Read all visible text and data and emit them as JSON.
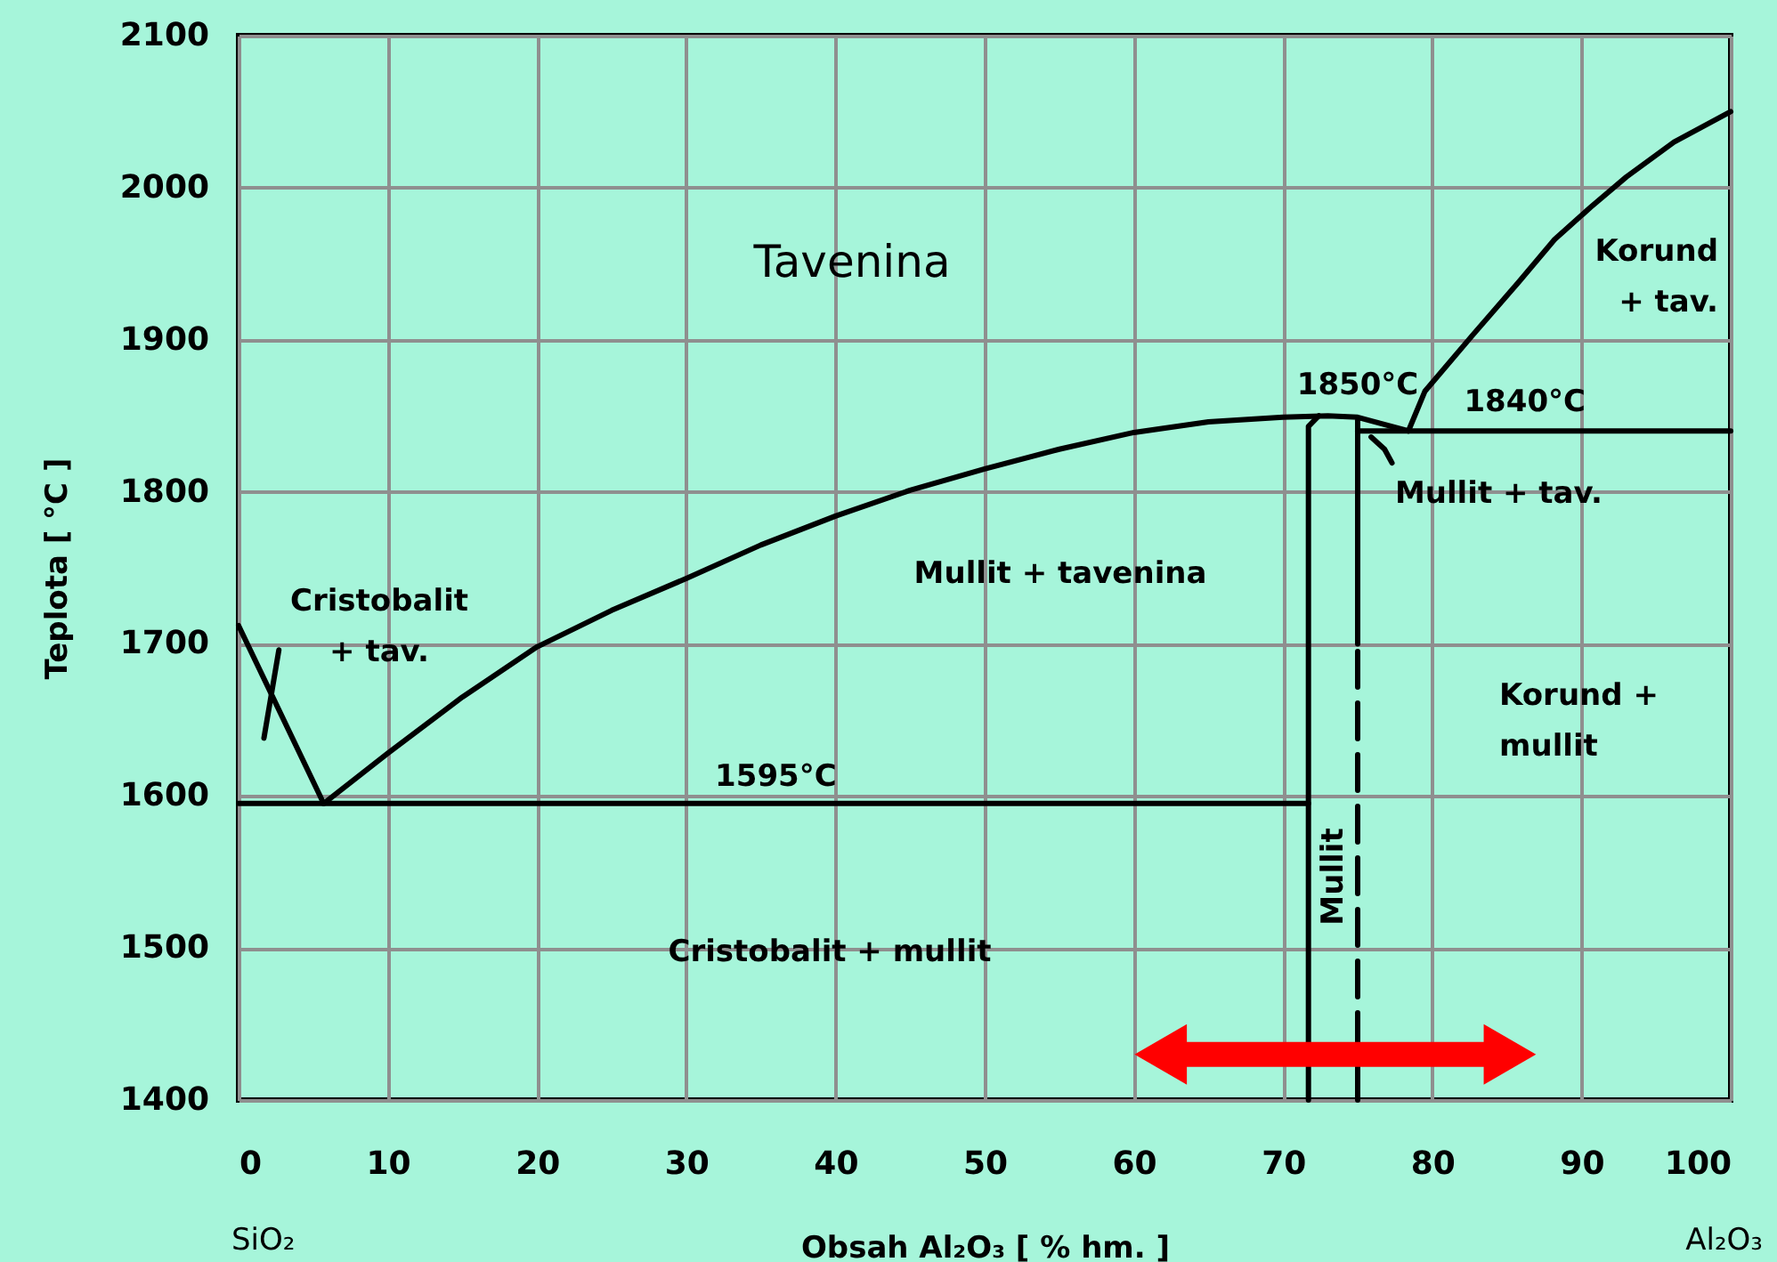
{
  "chart_data": {
    "type": "line",
    "xlabel": "Obsah Al₂O₃ [ % hm. ]",
    "ylabel": "Teplota [ °C ]",
    "xlim": [
      0,
      100
    ],
    "xticks": [
      0,
      10,
      20,
      30,
      40,
      50,
      60,
      70,
      80,
      90,
      100
    ],
    "ylim": [
      1400,
      2100
    ],
    "yticks": [
      1400,
      1500,
      1600,
      1700,
      1800,
      1900,
      2000,
      2100
    ],
    "grid": true,
    "series": [
      {
        "color": "#000000",
        "x": [
          0,
          5.7
        ],
        "values": [
          1712,
          1595
        ]
      },
      {
        "color": "#000000",
        "x": [
          5.7,
          10,
          15,
          20,
          25,
          30,
          35,
          40,
          45,
          50,
          55,
          60,
          65,
          70,
          73,
          75,
          76.5,
          78.4
        ],
        "values": [
          1595,
          1628,
          1665,
          1698,
          1722,
          1743,
          1765,
          1784,
          1801,
          1815,
          1828,
          1839,
          1846,
          1849,
          1850,
          1849,
          1845,
          1840
        ]
      },
      {
        "color": "#000000",
        "x": [
          0,
          71.7
        ],
        "values": [
          1595,
          1595
        ]
      },
      {
        "color": "#000000",
        "x": [
          71.7,
          71.7,
          72.4
        ],
        "values": [
          1400,
          1843,
          1850
        ]
      },
      {
        "color": "#000000",
        "x": [
          75,
          75
        ],
        "values": [
          1700,
          1847
        ]
      },
      {
        "color": "#000000",
        "x": [
          75,
          75
        ],
        "values": [
          1400,
          1700
        ],
        "line_style": "dashed"
      },
      {
        "color": "#000000",
        "x": [
          75,
          100
        ],
        "values": [
          1840,
          1840
        ]
      },
      {
        "color": "#000000",
        "x": [
          78.4,
          79.5,
          82.7,
          85.8,
          88.2,
          90.6,
          93,
          96.2,
          100
        ],
        "values": [
          1840,
          1866,
          1903,
          1938,
          1966,
          1987,
          2007,
          2030,
          2050
        ]
      },
      {
        "color": "#000000",
        "x": [
          75.9,
          76.8,
          77.3
        ],
        "values": [
          1836,
          1828,
          1819
        ]
      },
      {
        "color": "#000000",
        "x": [
          2.7,
          1.7
        ],
        "values": [
          1696,
          1638
        ]
      },
      {
        "color": "#ff0000",
        "x": [
          61.8,
          85.2
        ],
        "values": [
          1430,
          1430
        ],
        "marker": "triangle"
      }
    ],
    "annotations": [
      "Tavenina",
      "Cristobalit\n+ tav.",
      "Mullit + tavenina",
      "Korund\n+ tav.",
      {
        "text": "1850°C",
        "x": 75,
        "y": 1850
      },
      {
        "text": "1840°C",
        "x": 86.2,
        "y": 1840
      },
      "Mullit + tav.",
      "Korund +\nmullit",
      {
        "text": "1595°C",
        "x": 36,
        "y": 1595
      },
      "Cristobalit + mullit",
      "Mullit",
      "SiO₂",
      "Al₂O₃"
    ]
  }
}
